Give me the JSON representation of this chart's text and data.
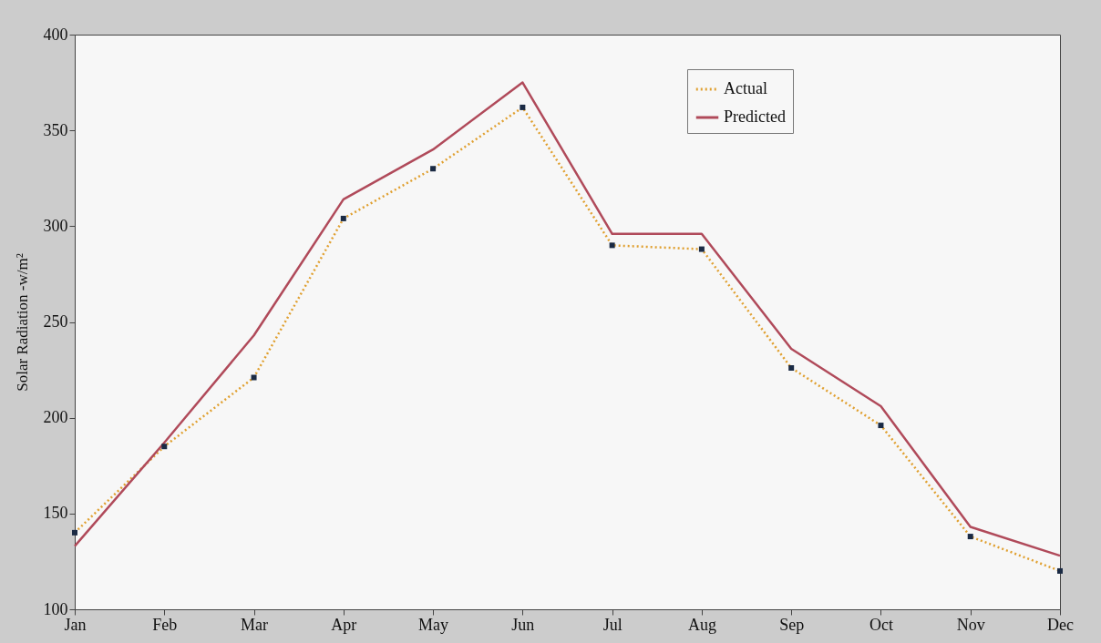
{
  "chart_data": {
    "type": "line",
    "ylabel": "Solar Radiation -w/m²",
    "categories": [
      "Jan",
      "Feb",
      "Mar",
      "Apr",
      "May",
      "Jun",
      "Jul",
      "Aug",
      "Sep",
      "Oct",
      "Nov",
      "Dec"
    ],
    "series": [
      {
        "name": "Actual",
        "color": "#e0a030",
        "line_style": "dotted",
        "marker": "square",
        "values": [
          140,
          185,
          221,
          304,
          330,
          362,
          290,
          288,
          226,
          196,
          138,
          120
        ]
      },
      {
        "name": "Predicted",
        "color": "#b04a5a",
        "line_style": "solid",
        "marker": "none",
        "values": [
          133,
          187,
          243,
          314,
          340,
          375,
          296,
          296,
          236,
          206,
          143,
          128
        ]
      }
    ],
    "ylim": [
      100,
      400
    ],
    "yticks": [
      100,
      150,
      200,
      250,
      300,
      350,
      400
    ],
    "grid": false,
    "legend": "top right"
  }
}
